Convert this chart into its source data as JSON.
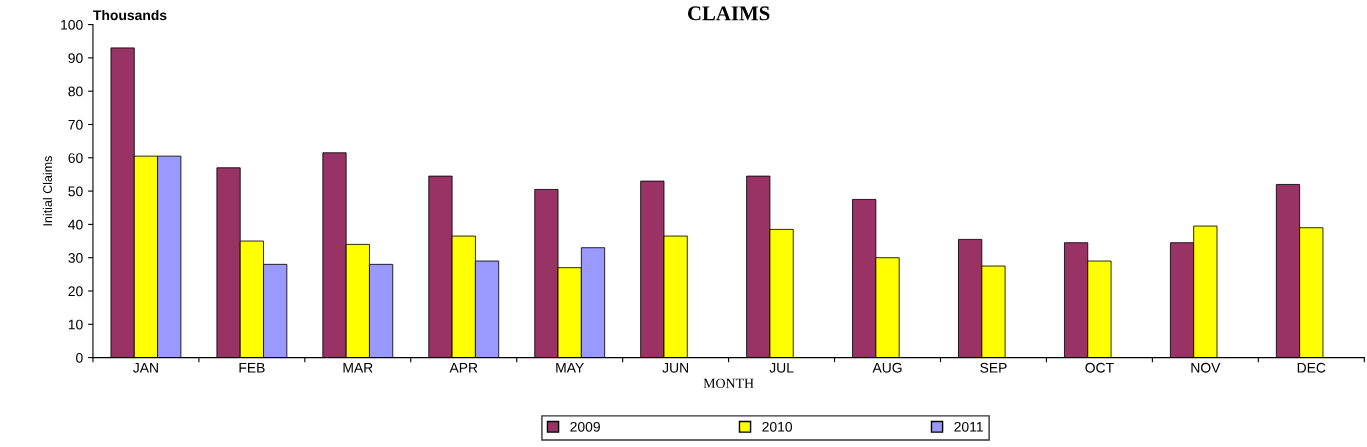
{
  "chart_data": {
    "type": "bar",
    "title": "CLAIMS",
    "xlabel": "MONTH",
    "ylabel": "Initial Claims",
    "annotations": [
      "Thousands"
    ],
    "categories": [
      "JAN",
      "FEB",
      "MAR",
      "APR",
      "MAY",
      "JUN",
      "JUL",
      "AUG",
      "SEP",
      "OCT",
      "NOV",
      "DEC"
    ],
    "series": [
      {
        "name": "2009",
        "color": "#993366",
        "values": [
          93,
          57,
          61.5,
          54.5,
          50.5,
          53,
          54.5,
          47.5,
          35.5,
          34.5,
          34.5,
          52
        ]
      },
      {
        "name": "2010",
        "color": "#ffff00",
        "values": [
          60.5,
          35,
          34,
          36.5,
          27,
          36.5,
          38.5,
          30,
          27.5,
          29,
          39.5,
          39
        ]
      },
      {
        "name": "2011",
        "color": "#9999ff",
        "values": [
          60.5,
          28,
          28,
          29,
          33,
          null,
          null,
          null,
          null,
          null,
          null,
          null
        ]
      }
    ],
    "ylim": [
      0,
      100
    ],
    "yticks": [
      0,
      10,
      20,
      30,
      40,
      50,
      60,
      70,
      80,
      90,
      100
    ],
    "grid": false,
    "legend": "bottom"
  }
}
